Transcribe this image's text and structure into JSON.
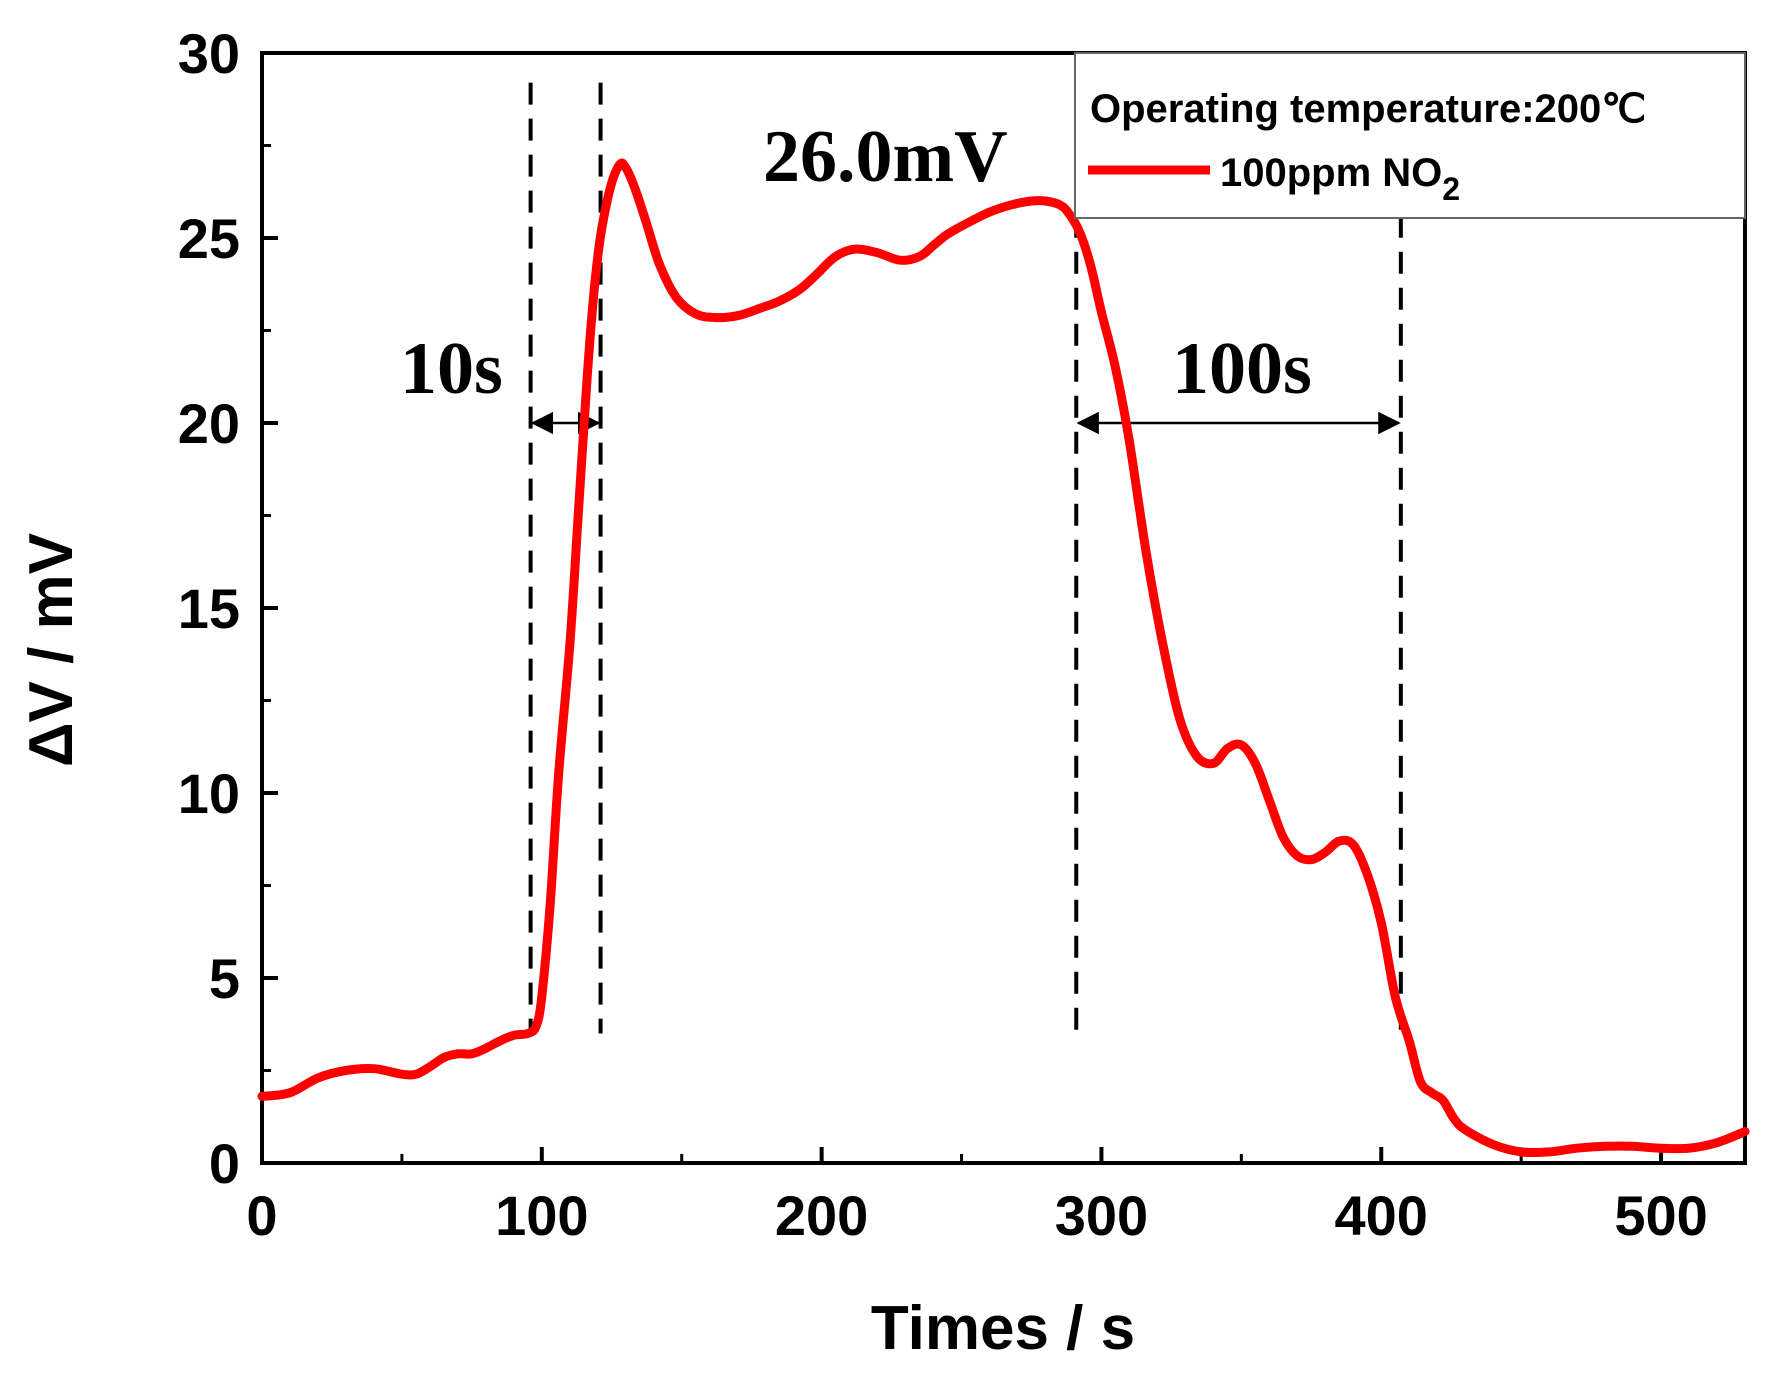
{
  "chart_data": {
    "type": "line",
    "title": "",
    "xlabel": "Times / s",
    "ylabel": "ΔV / mV",
    "xlim": [
      0,
      530
    ],
    "ylim": [
      0,
      30
    ],
    "xticks": [
      0,
      100,
      200,
      300,
      400,
      500
    ],
    "yticks": [
      0,
      5,
      10,
      15,
      20,
      25,
      30
    ],
    "legend": {
      "title": "Operating temperature:200℃",
      "entry": "100ppm NO",
      "entry_subscript": "2",
      "placement": "top-right"
    },
    "series": [
      {
        "name": "100ppm NO2",
        "color": "#ff0000",
        "x": [
          0,
          10,
          20,
          30,
          40,
          50,
          55,
          60,
          65,
          70,
          75,
          80,
          85,
          90,
          95,
          98,
          100,
          103,
          106,
          110,
          113,
          116,
          118,
          120,
          122,
          125,
          128,
          130,
          133,
          137,
          142,
          148,
          155,
          162,
          170,
          178,
          185,
          192,
          198,
          205,
          212,
          220,
          228,
          235,
          240,
          245,
          252,
          260,
          268,
          275,
          280,
          285,
          288,
          292,
          296,
          300,
          305,
          310,
          316,
          322,
          328,
          334,
          340,
          345,
          350,
          355,
          360,
          365,
          370,
          375,
          380,
          385,
          390,
          395,
          400,
          405,
          410,
          414,
          418,
          422,
          426,
          430,
          440,
          450,
          460,
          470,
          480,
          490,
          500,
          510,
          520,
          530
        ],
        "y": [
          1.8,
          1.9,
          2.3,
          2.5,
          2.55,
          2.4,
          2.4,
          2.6,
          2.85,
          2.95,
          2.95,
          3.1,
          3.3,
          3.45,
          3.5,
          3.7,
          4.5,
          7.0,
          10.5,
          14.0,
          17.5,
          21.0,
          23.0,
          24.5,
          25.5,
          26.5,
          27.0,
          26.9,
          26.4,
          25.5,
          24.3,
          23.4,
          22.95,
          22.85,
          22.9,
          23.1,
          23.3,
          23.6,
          24.0,
          24.5,
          24.7,
          24.6,
          24.4,
          24.5,
          24.8,
          25.1,
          25.4,
          25.7,
          25.9,
          26.0,
          26.0,
          25.9,
          25.7,
          25.2,
          24.3,
          23.0,
          21.5,
          19.5,
          16.5,
          14.0,
          12.0,
          11.0,
          10.8,
          11.2,
          11.3,
          10.8,
          9.8,
          8.8,
          8.3,
          8.2,
          8.4,
          8.7,
          8.6,
          7.8,
          6.5,
          4.5,
          3.3,
          2.2,
          1.9,
          1.7,
          1.2,
          0.9,
          0.5,
          0.3,
          0.3,
          0.4,
          0.45,
          0.45,
          0.4,
          0.4,
          0.55,
          0.85
        ]
      }
    ],
    "annotations": {
      "peak_label": "26.0mV",
      "response_time": "10s",
      "recovery_time": "100s",
      "response_markers_x": [
        96,
        121
      ],
      "recovery_markers_x": [
        291,
        407
      ],
      "arrow_level_y": 20
    }
  }
}
